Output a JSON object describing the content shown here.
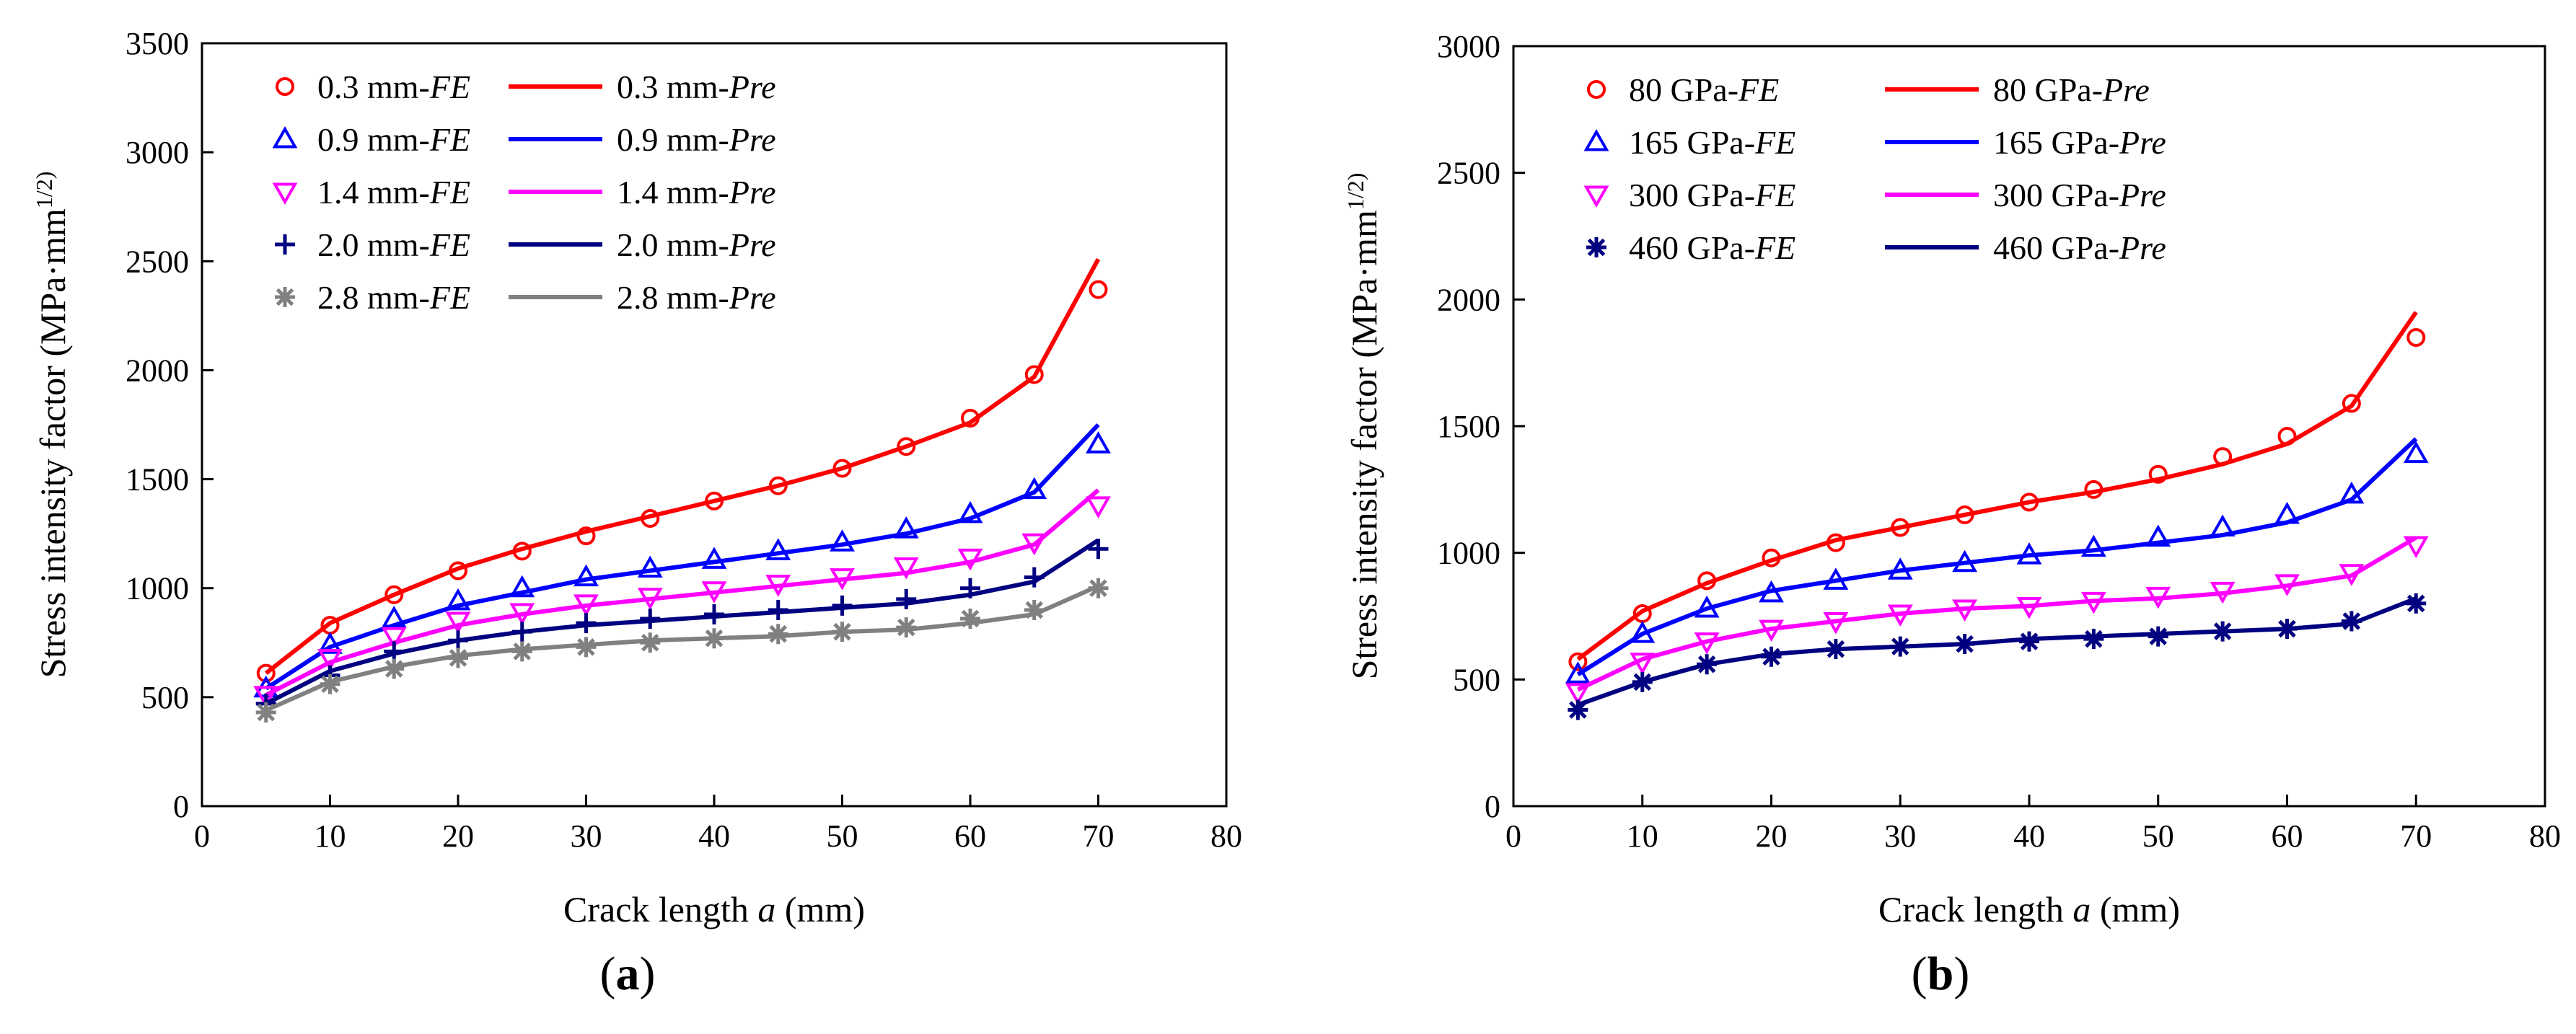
{
  "figure": {
    "panels": [
      {
        "label_open": "(",
        "label_letter": "a",
        "label_close": ")"
      },
      {
        "label_open": "(",
        "label_letter": "b",
        "label_close": ")"
      }
    ]
  },
  "chart_data": [
    {
      "type": "line",
      "panel": "a",
      "xlabel": "Crack length a (mm)",
      "ylabel": "Stress intensity factor (MPa·mm^1/2)",
      "xlim": [
        0,
        80
      ],
      "ylim": [
        0,
        3500
      ],
      "xticks": [
        0,
        10,
        20,
        30,
        40,
        50,
        60,
        70,
        80
      ],
      "yticks": [
        0,
        500,
        1000,
        1500,
        2000,
        2500,
        3000,
        3500
      ],
      "legend_position": "top-left",
      "x": [
        5,
        10,
        15,
        20,
        25,
        30,
        35,
        40,
        45,
        50,
        55,
        60,
        65,
        70
      ],
      "series": [
        {
          "name": "0.3 mm",
          "color": "#ff0000",
          "marker": "circle",
          "fe_label": "0.3 mm-FE",
          "pre_label": "0.3 mm-Pre",
          "fe": [
            610,
            830,
            970,
            1080,
            1170,
            1240,
            1320,
            1400,
            1470,
            1550,
            1650,
            1780,
            1980,
            2370
          ],
          "pre": [
            610,
            840,
            970,
            1090,
            1180,
            1260,
            1330,
            1400,
            1470,
            1550,
            1650,
            1760,
            1970,
            2510
          ]
        },
        {
          "name": "0.9 mm",
          "color": "#0000ff",
          "marker": "triangle-up",
          "fe_label": "0.9 mm-FE",
          "pre_label": "0.9 mm-Pre",
          "fe": [
            540,
            740,
            860,
            940,
            1000,
            1050,
            1090,
            1130,
            1170,
            1210,
            1270,
            1340,
            1450,
            1660
          ],
          "pre": [
            540,
            730,
            830,
            920,
            980,
            1040,
            1080,
            1120,
            1160,
            1200,
            1250,
            1320,
            1440,
            1750
          ]
        },
        {
          "name": "1.4 mm",
          "color": "#ff00ff",
          "marker": "triangle-down",
          "fe_label": "1.4 mm-FE",
          "pre_label": "1.4 mm-Pre",
          "fe": [
            510,
            680,
            780,
            850,
            890,
            930,
            960,
            990,
            1020,
            1050,
            1100,
            1140,
            1210,
            1380
          ],
          "pre": [
            510,
            660,
            750,
            830,
            880,
            920,
            950,
            980,
            1010,
            1040,
            1070,
            1120,
            1200,
            1450
          ]
        },
        {
          "name": "2.0 mm",
          "color": "#000080",
          "marker": "plus",
          "fe_label": "2.0 mm-FE",
          "pre_label": "2.0 mm-Pre",
          "fe": [
            470,
            600,
            710,
            760,
            800,
            840,
            860,
            880,
            900,
            920,
            950,
            1000,
            1050,
            1180
          ],
          "pre": [
            470,
            620,
            700,
            760,
            800,
            830,
            850,
            870,
            890,
            910,
            930,
            970,
            1030,
            1220
          ]
        },
        {
          "name": "2.8 mm",
          "color": "#808080",
          "marker": "asterisk",
          "fe_label": "2.8 mm-FE",
          "pre_label": "2.8 mm-Pre",
          "fe": [
            430,
            560,
            630,
            680,
            710,
            730,
            750,
            770,
            790,
            800,
            820,
            860,
            900,
            1000
          ],
          "pre": [
            440,
            570,
            640,
            690,
            720,
            740,
            760,
            770,
            780,
            800,
            810,
            840,
            880,
            1010
          ]
        }
      ]
    },
    {
      "type": "line",
      "panel": "b",
      "xlabel": "Crack length a (mm)",
      "ylabel": "Stress intensity factor (MPa·mm^1/2)",
      "xlim": [
        0,
        80
      ],
      "ylim": [
        0,
        3000
      ],
      "xticks": [
        0,
        10,
        20,
        30,
        40,
        50,
        60,
        70,
        80
      ],
      "yticks": [
        0,
        500,
        1000,
        1500,
        2000,
        2500,
        3000
      ],
      "legend_position": "top-left",
      "x": [
        5,
        10,
        15,
        20,
        25,
        30,
        35,
        40,
        45,
        50,
        55,
        60,
        65,
        70
      ],
      "series": [
        {
          "name": "80 GPa",
          "color": "#ff0000",
          "marker": "circle",
          "fe_label": "80 GPa-FE",
          "pre_label": "80 GPa-Pre",
          "fe": [
            570,
            760,
            890,
            980,
            1040,
            1100,
            1150,
            1200,
            1250,
            1310,
            1380,
            1460,
            1590,
            1850
          ],
          "pre": [
            580,
            770,
            880,
            970,
            1050,
            1100,
            1150,
            1200,
            1240,
            1290,
            1350,
            1430,
            1580,
            1950
          ]
        },
        {
          "name": "165 GPa",
          "color": "#0000ff",
          "marker": "triangle-up",
          "fe_label": "165 GPa-FE",
          "pre_label": "165 GPa-Pre",
          "fe": [
            520,
            680,
            780,
            840,
            890,
            930,
            960,
            990,
            1020,
            1060,
            1100,
            1150,
            1230,
            1390
          ],
          "pre": [
            520,
            680,
            780,
            850,
            890,
            930,
            960,
            990,
            1010,
            1040,
            1070,
            1120,
            1210,
            1450
          ]
        },
        {
          "name": "300 GPa",
          "color": "#ff00ff",
          "marker": "triangle-down",
          "fe_label": "300 GPa-FE",
          "pre_label": "300 GPa-Pre",
          "fe": [
            450,
            570,
            650,
            700,
            730,
            760,
            780,
            790,
            810,
            830,
            850,
            880,
            920,
            1030
          ],
          "pre": [
            460,
            580,
            650,
            700,
            730,
            760,
            780,
            790,
            810,
            820,
            840,
            870,
            910,
            1060
          ]
        },
        {
          "name": "460 GPa",
          "color": "#000080",
          "marker": "asterisk",
          "fe_label": "460 GPa-FE",
          "pre_label": "460 GPa-Pre",
          "fe": [
            380,
            490,
            560,
            590,
            620,
            630,
            640,
            650,
            660,
            670,
            690,
            700,
            730,
            800
          ],
          "pre": [
            400,
            490,
            560,
            600,
            620,
            630,
            640,
            660,
            670,
            680,
            690,
            700,
            720,
            820
          ]
        }
      ]
    }
  ]
}
